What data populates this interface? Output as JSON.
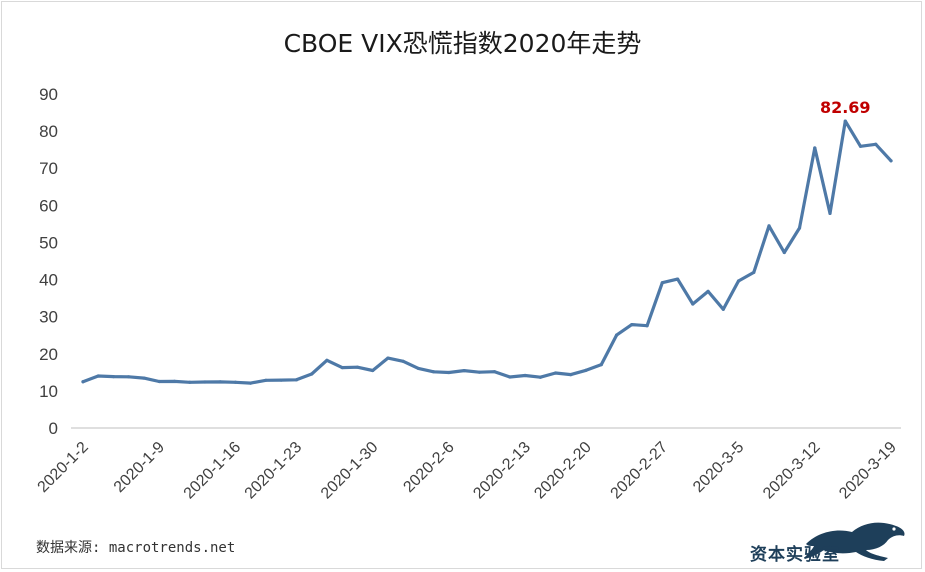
{
  "title": "CBOE VIX恐慌指数2020年走势",
  "source_text": "数据来源: macrotrends.net",
  "brand_text": "资本实验室",
  "colors": {
    "line": "#4e79a7",
    "peak_label": "#c00000",
    "axis": "#404040"
  },
  "chart_data": {
    "type": "line",
    "title": "CBOE VIX恐慌指数2020年走势",
    "xlabel": "",
    "ylabel": "",
    "ylim": [
      0,
      90
    ],
    "y_ticks": [
      0,
      10,
      20,
      30,
      40,
      50,
      60,
      70,
      80,
      90
    ],
    "grid": false,
    "legend": "none",
    "x_tick_labels": [
      "2020-1-2",
      "2020-1-9",
      "2020-1-16",
      "2020-1-23",
      "2020-1-30",
      "2020-2-6",
      "2020-2-13",
      "2020-2-20",
      "2020-2-27",
      "2020-3-5",
      "2020-3-12",
      "2020-3-19"
    ],
    "peak_label": "82.69",
    "series": [
      {
        "x": [
          "2020-1-2",
          "2020-1-3",
          "2020-1-6",
          "2020-1-7",
          "2020-1-8",
          "2020-1-9",
          "2020-1-10",
          "2020-1-13",
          "2020-1-14",
          "2020-1-15",
          "2020-1-16",
          "2020-1-17",
          "2020-1-21",
          "2020-1-22",
          "2020-1-23",
          "2020-1-24",
          "2020-1-27",
          "2020-1-28",
          "2020-1-29",
          "2020-1-30",
          "2020-1-31",
          "2020-2-3",
          "2020-2-4",
          "2020-2-5",
          "2020-2-6",
          "2020-2-7",
          "2020-2-10",
          "2020-2-11",
          "2020-2-12",
          "2020-2-13",
          "2020-2-14",
          "2020-2-18",
          "2020-2-19",
          "2020-2-20",
          "2020-2-21",
          "2020-2-24",
          "2020-2-25",
          "2020-2-26",
          "2020-2-27",
          "2020-2-28",
          "2020-3-2",
          "2020-3-3",
          "2020-3-4",
          "2020-3-5",
          "2020-3-6",
          "2020-3-9",
          "2020-3-10",
          "2020-3-11",
          "2020-3-12",
          "2020-3-13",
          "2020-3-16",
          "2020-3-17",
          "2020-3-18",
          "2020-3-19"
        ],
        "values": [
          12.47,
          14.02,
          13.85,
          13.79,
          13.45,
          12.54,
          12.56,
          12.32,
          12.39,
          12.42,
          12.32,
          12.1,
          12.85,
          12.91,
          12.98,
          14.56,
          18.23,
          16.28,
          16.39,
          15.49,
          18.84,
          17.97,
          16.05,
          15.15,
          14.96,
          15.47,
          15.04,
          15.18,
          13.74,
          14.15,
          13.68,
          14.83,
          14.38,
          15.56,
          17.08,
          25.03,
          27.85,
          27.56,
          39.16,
          40.11,
          33.42,
          36.82,
          31.99,
          39.62,
          41.94,
          54.46,
          47.3,
          53.9,
          75.47,
          57.83,
          82.69,
          75.91,
          76.45,
          72.0
        ]
      }
    ]
  }
}
